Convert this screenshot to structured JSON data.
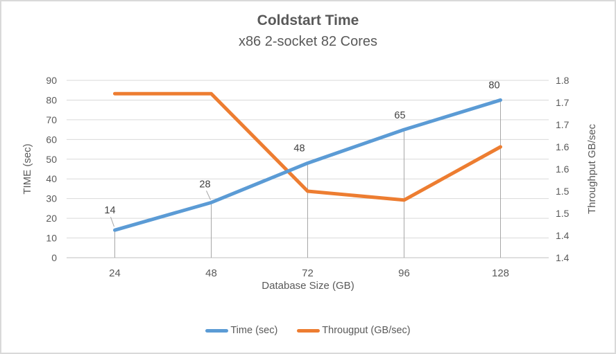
{
  "chart_data": {
    "type": "line",
    "title": "Coldstart Time",
    "subtitle": "x86 2-socket 82 Cores",
    "categories": [
      "24",
      "48",
      "72",
      "96",
      "128"
    ],
    "xlabel": "Database Size (GB)",
    "series": [
      {
        "name": "Time (sec)",
        "axis": "left",
        "color": "#5B9BD5",
        "values": [
          14,
          28,
          48,
          65,
          80
        ],
        "data_labels": [
          "14",
          "28",
          "48",
          "65",
          "80"
        ]
      },
      {
        "name": "Througput (GB/sec)",
        "axis": "right",
        "color": "#ED7D31",
        "values": [
          1.77,
          1.77,
          1.55,
          1.53,
          1.65
        ],
        "data_labels": []
      }
    ],
    "left_axis": {
      "title": "TIME (sec)",
      "min": 0,
      "max": 90,
      "major_unit": 10,
      "tick_labels_top_to_bottom": [
        "90",
        "80",
        "70",
        "60",
        "50",
        "40",
        "30",
        "20",
        "10",
        "0"
      ]
    },
    "right_axis": {
      "title": "Throughput GB/sec",
      "min": 1.4,
      "max": 1.8,
      "tick_labels_top_to_bottom": [
        "1.8",
        "1.7",
        "1.7",
        "1.6",
        "1.6",
        "1.5",
        "1.5",
        "1.4",
        "1.4"
      ]
    },
    "legend": {
      "position": "bottom",
      "entries": [
        {
          "label": "Time (sec)",
          "color": "#5B9BD5"
        },
        {
          "label": "Througput (GB/sec)",
          "color": "#ED7D31"
        }
      ]
    },
    "grid": true,
    "drop_lines": true
  },
  "colors": {
    "gridline": "#D9D9D9",
    "axis_line": "#BFBFBF",
    "drop_line": "#A6A6A6",
    "leader_line": "#A6A6A6",
    "tick_text": "#595959",
    "data_label_text": "#404040",
    "border": "#D9D9D9",
    "background": "#FFFFFF"
  }
}
